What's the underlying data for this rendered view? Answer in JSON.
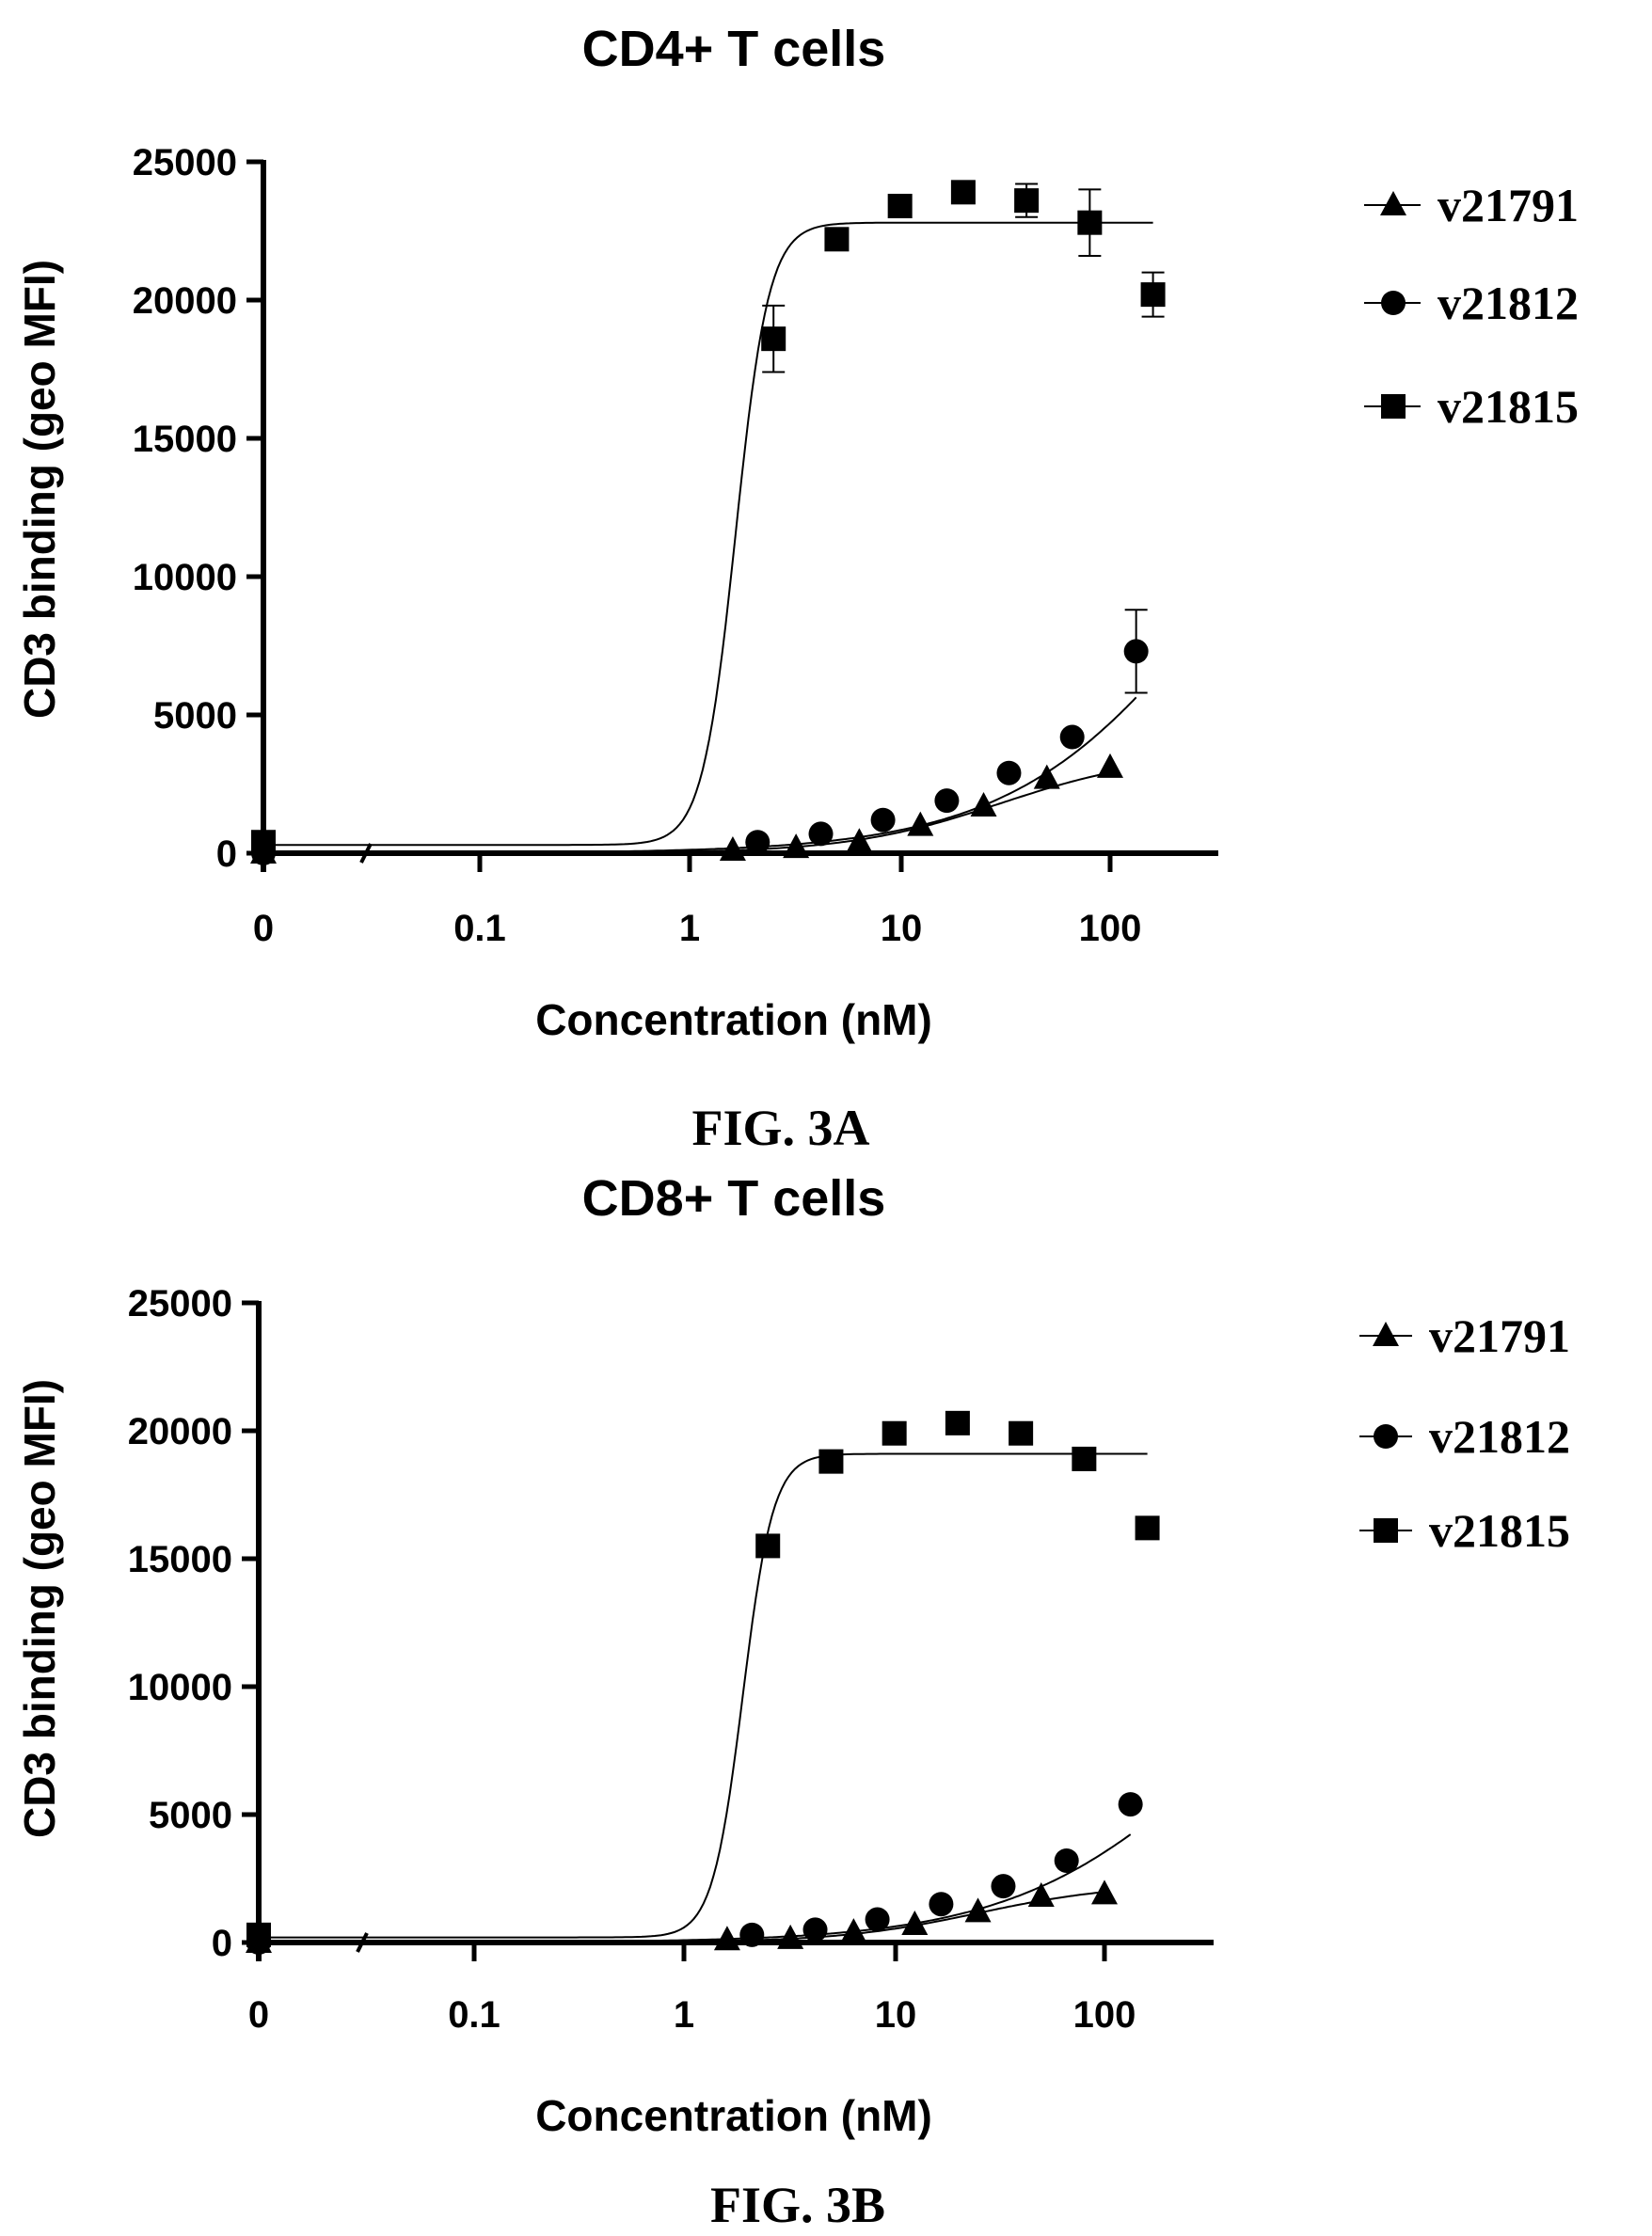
{
  "chart_data": [
    {
      "type": "scatter",
      "title": "CD4+ T cells",
      "xlabel": "Concentration (nM)",
      "ylabel": "CD3 binding (geo MFI)",
      "x_scale": "log",
      "x_ticks": [
        "0",
        "0.1",
        "1",
        "10",
        "100"
      ],
      "y_ticks": [
        "0",
        "5000",
        "10000",
        "15000",
        "20000",
        "25000"
      ],
      "ylim": [
        0,
        25000
      ],
      "caption": "FIG. 3A",
      "legend_position": "right",
      "series": [
        {
          "name": "v21791",
          "marker": "triangle",
          "x": [
            0.01,
            1.6,
            3.2,
            6.4,
            12.5,
            25,
            50,
            100
          ],
          "y": [
            0,
            100,
            200,
            400,
            1000,
            1700,
            2700,
            3100
          ],
          "fit": {
            "bottom": 0,
            "top": 3600,
            "ec50": 30,
            "hill": 1.2
          }
        },
        {
          "name": "v21812",
          "marker": "circle",
          "x": [
            0.01,
            2.1,
            4.2,
            8.3,
            16.7,
            33,
            66,
            133
          ],
          "y": [
            0,
            400,
            700,
            1200,
            1900,
            2900,
            4200,
            7300
          ],
          "err": [
            0,
            0,
            0,
            0,
            0,
            0,
            0,
            1500
          ],
          "fit": {
            "bottom": 0,
            "top": 20000,
            "ec50": 400,
            "hill": 0.85
          }
        },
        {
          "name": "v21815",
          "marker": "square",
          "x": [
            0.01,
            2.5,
            5,
            10,
            20,
            40,
            80,
            160
          ],
          "y": [
            400,
            18600,
            22200,
            23400,
            23900,
            23600,
            22800,
            20200
          ],
          "err": [
            0,
            1200,
            0,
            0,
            0,
            600,
            1200,
            800
          ],
          "fit": {
            "bottom": 300,
            "top": 22800,
            "ec50": 1.65,
            "hill": 5.5
          }
        }
      ]
    },
    {
      "type": "scatter",
      "title": "CD8+ T cells",
      "xlabel": "Concentration (nM)",
      "ylabel": "CD3 binding (geo MFI)",
      "x_scale": "log",
      "x_ticks": [
        "0",
        "0.1",
        "1",
        "10",
        "100"
      ],
      "y_ticks": [
        "0",
        "5000",
        "10000",
        "15000",
        "20000",
        "25000"
      ],
      "ylim": [
        0,
        25000
      ],
      "caption": "FIG. 3B",
      "legend_position": "right",
      "series": [
        {
          "name": "v21791",
          "marker": "triangle",
          "x": [
            0.01,
            1.6,
            3.2,
            6.4,
            12.5,
            25,
            50,
            100
          ],
          "y": [
            0,
            100,
            150,
            400,
            700,
            1200,
            1800,
            1900
          ],
          "fit": {
            "bottom": 0,
            "top": 2300,
            "ec50": 25,
            "hill": 1.3
          }
        },
        {
          "name": "v21812",
          "marker": "circle",
          "x": [
            0.01,
            2.1,
            4.2,
            8.3,
            16.7,
            33,
            66,
            133
          ],
          "y": [
            0,
            300,
            500,
            900,
            1500,
            2200,
            3200,
            5400
          ],
          "fit": {
            "bottom": 0,
            "top": 15000,
            "ec50": 400,
            "hill": 0.85
          }
        },
        {
          "name": "v21815",
          "marker": "square",
          "x": [
            0.01,
            2.5,
            5,
            10,
            20,
            40,
            80,
            160
          ],
          "y": [
            300,
            15500,
            18800,
            19900,
            20300,
            19900,
            18900,
            16200
          ],
          "fit": {
            "bottom": 200,
            "top": 19100,
            "ec50": 1.9,
            "hill": 6
          }
        }
      ]
    }
  ]
}
